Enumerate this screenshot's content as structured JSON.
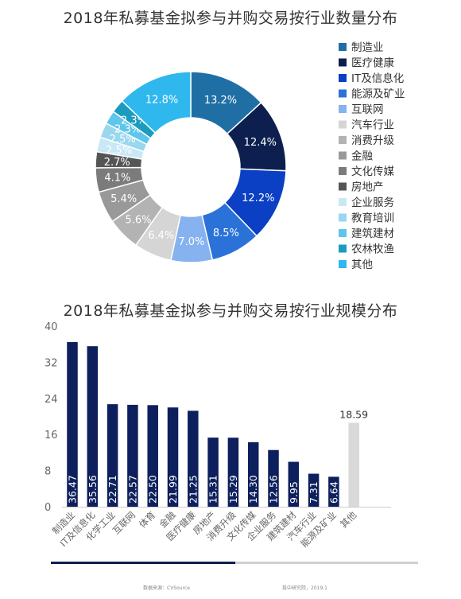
{
  "chart_data": [
    {
      "type": "pie",
      "title": "2018年私募基金拟参与并购交易按行业数量分布",
      "legend_position": "right",
      "slices": [
        {
          "label": "制造业",
          "value": 13.2,
          "display": "13.2%",
          "color": "#1f6fa5"
        },
        {
          "label": "医疗健康",
          "value": 12.4,
          "display": "12.4%",
          "color": "#0d1f4e"
        },
        {
          "label": "IT及信息化",
          "value": 12.2,
          "display": "12.2%",
          "color": "#0b3fc4"
        },
        {
          "label": "能源及矿业",
          "value": 8.5,
          "display": "8.5%",
          "color": "#2a71d8"
        },
        {
          "label": "互联网",
          "value": 7.0,
          "display": "7.0%",
          "color": "#86b3f0"
        },
        {
          "label": "汽车行业",
          "value": 6.4,
          "display": "6.4%",
          "color": "#d5d5d5"
        },
        {
          "label": "消费升级",
          "value": 5.6,
          "display": "5.6%",
          "color": "#b3b3b3"
        },
        {
          "label": "金融",
          "value": 5.4,
          "display": "5.4%",
          "color": "#999999"
        },
        {
          "label": "文化传媒",
          "value": 4.1,
          "display": "4.1%",
          "color": "#7b7b7b"
        },
        {
          "label": "房地产",
          "value": 2.7,
          "display": "2.7%",
          "color": "#555555"
        },
        {
          "label": "企业服务",
          "value": 2.5,
          "display": "2.5%",
          "color": "#c8e8f5"
        },
        {
          "label": "教育培训",
          "value": 2.5,
          "display": "2.5%",
          "color": "#99d7ef"
        },
        {
          "label": "建筑建材",
          "value": 2.3,
          "display": "2.3%",
          "color": "#5ec6ea"
        },
        {
          "label": "农林牧渔",
          "value": 2.3,
          "display": "2.3%",
          "color": "#1c9bc0"
        },
        {
          "label": "其他",
          "value": 12.8,
          "display": "12.8%",
          "color": "#2fb8ee"
        }
      ]
    },
    {
      "type": "bar",
      "title": "2018年私募基金拟参与并购交易按行业规模分布",
      "categories": [
        "制造业",
        "IT及信息化",
        "化学工业",
        "互联网",
        "体育",
        "金融",
        "医疗健康",
        "房地产",
        "消费升级",
        "文化传媒",
        "企业服务",
        "建筑建材",
        "汽车行业",
        "能源及矿业",
        "其他"
      ],
      "values": [
        36.47,
        35.56,
        22.71,
        22.57,
        22.5,
        21.99,
        21.25,
        15.31,
        15.29,
        14.3,
        12.56,
        9.95,
        7.31,
        6.64,
        18.59
      ],
      "value_labels": [
        "36.47",
        "35.56",
        "22.71",
        "22.57",
        "22.50",
        "21.99",
        "21.25",
        "15.31",
        "15.29",
        "14.30",
        "12.56",
        "9.95",
        "7.31",
        "6.64",
        "18.59"
      ],
      "yticks": [
        "0",
        "8",
        "16",
        "24",
        "32",
        "40"
      ],
      "ylim": [
        0,
        40
      ],
      "grid": false,
      "bar_color": "#0d1f5c",
      "highlight_color": "#d9d9d9"
    }
  ],
  "footer": {
    "source": "数据来源：CVSource",
    "org": "投中研究院，2019.1"
  }
}
